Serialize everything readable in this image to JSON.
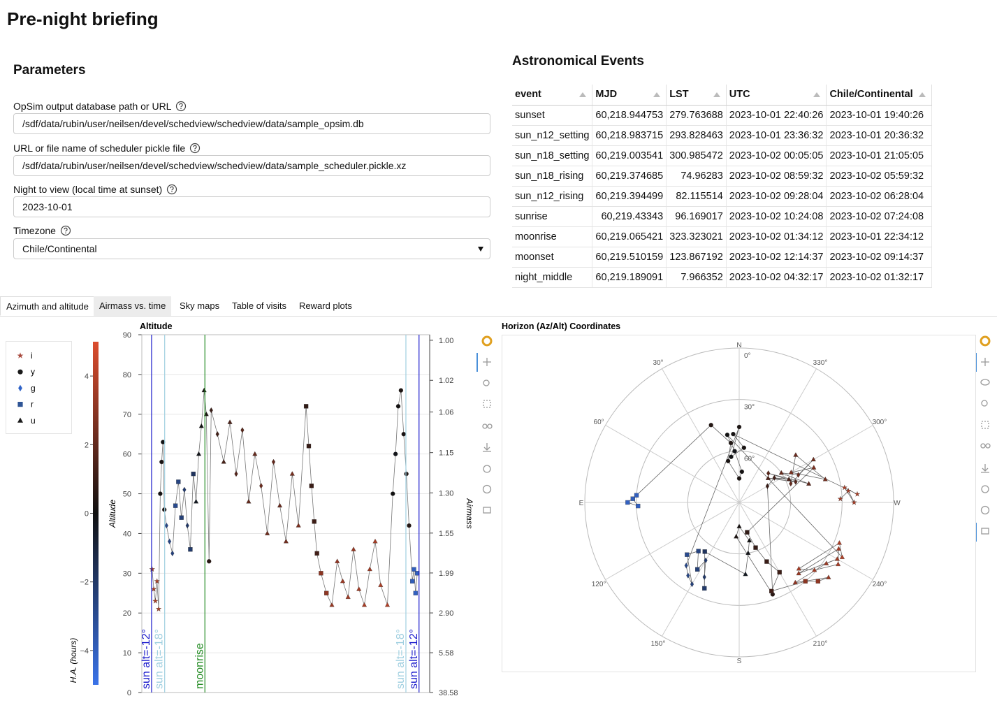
{
  "header": {
    "title": "Pre-night briefing"
  },
  "parameters": {
    "title": "Parameters",
    "fields": [
      {
        "label": "OpSim output database path or URL",
        "value": "/sdf/data/rubin/user/neilsen/devel/schedview/schedview/data/sample_opsim.db"
      },
      {
        "label": "URL or file name of scheduler pickle file",
        "value": "/sdf/data/rubin/user/neilsen/devel/schedview/schedview/data/sample_scheduler.pickle.xz"
      },
      {
        "label": "Night to view (local time at sunset)",
        "value": "2023-10-01"
      },
      {
        "label": "Timezone",
        "value": "Chile/Continental"
      }
    ]
  },
  "events": {
    "title": "Astronomical Events",
    "columns": [
      "event",
      "MJD",
      "LST",
      "UTC",
      "Chile/Continental"
    ],
    "rows": [
      [
        "sunset",
        "60,218.944753",
        "279.763688",
        "2023-10-01 22:40:26",
        "2023-10-01 19:40:26"
      ],
      [
        "sun_n12_setting",
        "60,218.983715",
        "293.828463",
        "2023-10-01 23:36:32",
        "2023-10-01 20:36:32"
      ],
      [
        "sun_n18_setting",
        "60,219.003541",
        "300.985472",
        "2023-10-02 00:05:05",
        "2023-10-01 21:05:05"
      ],
      [
        "sun_n18_rising",
        "60,219.374685",
        "74.96283",
        "2023-10-02 08:59:32",
        "2023-10-02 05:59:32"
      ],
      [
        "sun_n12_rising",
        "60,219.394499",
        "82.115514",
        "2023-10-02 09:28:04",
        "2023-10-02 06:28:04"
      ],
      [
        "sunrise",
        "60,219.43343",
        "96.169017",
        "2023-10-02 10:24:08",
        "2023-10-02 07:24:08"
      ],
      [
        "moonrise",
        "60,219.065421",
        "323.323021",
        "2023-10-02 01:34:12",
        "2023-10-01 22:34:12"
      ],
      [
        "moonset",
        "60,219.510159",
        "123.867192",
        "2023-10-02 12:14:37",
        "2023-10-02 09:14:37"
      ],
      [
        "night_middle",
        "60,219.189091",
        "7.966352",
        "2023-10-02 04:32:17",
        "2023-10-02 01:32:17"
      ]
    ]
  },
  "tabs": [
    "Azimuth and altitude",
    "Airmass vs. time",
    "Sky maps",
    "Table of visits",
    "Reward plots"
  ],
  "chart_data": [
    {
      "type": "scatter",
      "title": "Altitude",
      "ylabel": "Altitude",
      "y2label": "Airmass",
      "y2scale": "airmass",
      "xlim": [
        20.24,
        30.86
      ],
      "ylim": [
        0,
        90
      ],
      "yticks": [
        0,
        10,
        20,
        30,
        40,
        50,
        60,
        70,
        80,
        90
      ],
      "grid": true,
      "y2ticks": [
        {
          "value": 1,
          "label": "1.00"
        },
        1.02,
        1.06,
        1.15,
        {
          "value": 1.3,
          "label": "1.30"
        },
        1.55,
        1.99,
        {
          "value": 2.9,
          "label": "2.90"
        },
        5.58,
        38.58
      ],
      "x": [
        20.62,
        20.68,
        20.74,
        20.8,
        20.86,
        20.92,
        20.97,
        21.02,
        21.07,
        21.15,
        21.26,
        21.37,
        21.48,
        21.59,
        21.7,
        21.81,
        21.92,
        22.03,
        22.14,
        22.24,
        22.34,
        22.44,
        22.54,
        22.62,
        22.72,
        22.8,
        23.03,
        23.26,
        23.49,
        23.72,
        23.95,
        24.18,
        24.41,
        24.64,
        24.87,
        25.1,
        25.33,
        25.56,
        25.79,
        26.02,
        26.3,
        26.4,
        26.5,
        26.6,
        26.7,
        26.85,
        27.05,
        27.25,
        27.45,
        27.65,
        27.85,
        28.05,
        28.25,
        28.45,
        28.65,
        28.85,
        29.05,
        29.3,
        29.5,
        29.6,
        29.7,
        29.8,
        29.9,
        30.0,
        30.1,
        30.22,
        30.28,
        30.34,
        30.4
      ],
      "alt": [
        31,
        26,
        23,
        28,
        21,
        50,
        58,
        63,
        46,
        42,
        38,
        35,
        47,
        53,
        44,
        51,
        42,
        36,
        55,
        48,
        60,
        67,
        76,
        70,
        33,
        71,
        65,
        58,
        68,
        55,
        66,
        48,
        60,
        52,
        40,
        58,
        47,
        38,
        55,
        42,
        72,
        62,
        52,
        43,
        35,
        30,
        25,
        22,
        33,
        28,
        24,
        36,
        26,
        22,
        31,
        38,
        27,
        22,
        50,
        60,
        72,
        76,
        65,
        55,
        42,
        28,
        31,
        25,
        30
      ],
      "ha": [
        3.6,
        3.7,
        3.7,
        3.8,
        3.8,
        0.1,
        0.2,
        -0.1,
        0.3,
        -2.8,
        -2.7,
        -2.5,
        -2.9,
        -2.6,
        -2.4,
        -2.2,
        -2,
        -2.1,
        -1.8,
        -0.4,
        -0.2,
        0,
        0.2,
        0.3,
        0.6,
        1,
        1.2,
        1.4,
        1.5,
        1.7,
        1.8,
        2,
        2.1,
        2.2,
        2.3,
        2,
        2.2,
        2.4,
        2.5,
        2.6,
        0.8,
        0.9,
        1,
        1.1,
        1.2,
        3,
        3.1,
        3.3,
        3.2,
        3.4,
        3.5,
        3.3,
        3.6,
        3.7,
        3.5,
        3.6,
        3.8,
        3.9,
        0,
        -0.2,
        0.1,
        0.3,
        0.2,
        0.4,
        0.5,
        -3.9,
        -4,
        -4.1,
        -4
      ],
      "filter": [
        "i",
        "i",
        "i",
        "i",
        "i",
        "y",
        "y",
        "y",
        "y",
        "g",
        "g",
        "g",
        "r",
        "r",
        "r",
        "g",
        "g",
        "r",
        "r",
        "u",
        "u",
        "u",
        "u",
        "u",
        "y",
        "g",
        "g",
        "u",
        "u",
        "g",
        "g",
        "u",
        "u",
        "g",
        "u",
        "g",
        "u",
        "u",
        "u",
        "u",
        "r",
        "r",
        "r",
        "r",
        "r",
        "r",
        "r",
        "u",
        "u",
        "u",
        "u",
        "u",
        "u",
        "u",
        "u",
        "u",
        "u",
        "u",
        "y",
        "y",
        "y",
        "y",
        "y",
        "y",
        "y",
        "r",
        "r",
        "r",
        "r"
      ],
      "filters": [
        {
          "name": "i",
          "marker": "star",
          "color": "#a84a3e"
        },
        {
          "name": "y",
          "marker": "circle",
          "color": "#1a1a1a"
        },
        {
          "name": "g",
          "marker": "diamond",
          "color": "#2f63c8"
        },
        {
          "name": "r",
          "marker": "square",
          "color": "#2f5596"
        },
        {
          "name": "u",
          "marker": "triangle",
          "color": "#1a1a1a"
        }
      ],
      "colorbar": {
        "label": "H.A. (hours)",
        "clim": [
          -5,
          5
        ],
        "colors": [
          "#3a73e8",
          "#111111",
          "#dc4d2e"
        ],
        "ticks": [
          {
            "value": -4,
            "label": "−4"
          },
          {
            "value": -2,
            "label": "−2"
          },
          0,
          2,
          4
        ]
      },
      "vlines": [
        {
          "x": 20.6,
          "label": "sun alt=-12°",
          "color": "#1a1acc"
        },
        {
          "x": 21.083,
          "label": "sun alt=-18°",
          "color": "#9fcfe0"
        },
        {
          "x": 22.567,
          "label": "moonrise",
          "color": "#228b22"
        },
        {
          "x": 29.983,
          "label": "sun alt=-18°",
          "color": "#9fcfe0"
        },
        {
          "x": 30.467,
          "label": "sun alt=-12°",
          "color": "#1a1acc"
        }
      ]
    },
    {
      "type": "polar",
      "title": "Horizon (Az/Alt) Coordinates",
      "rlim": [
        90,
        0
      ],
      "rticks": [
        {
          "value": 0,
          "label": "0°"
        },
        {
          "value": 30,
          "label": "30°"
        },
        {
          "value": 60,
          "label": "60°"
        }
      ],
      "azticks": [
        {
          "value": 30,
          "label": "30°"
        },
        {
          "value": 60,
          "label": "60°"
        },
        {
          "value": 120,
          "label": "120°"
        },
        {
          "value": 150,
          "label": "150°"
        },
        {
          "value": 210,
          "label": "210°"
        },
        {
          "value": 240,
          "label": "240°"
        },
        {
          "value": 300,
          "label": "300°"
        },
        {
          "value": 330,
          "label": "330°"
        }
      ],
      "cardinals": [
        {
          "value": 0,
          "label": "N"
        },
        {
          "value": 90,
          "label": "E"
        },
        {
          "value": 180,
          "label": "S"
        },
        {
          "value": 270,
          "label": "W"
        }
      ],
      "az": [
        272,
        276,
        270,
        278,
        274,
        5,
        355,
        10,
        0,
        140,
        145,
        150,
        135,
        140,
        148,
        150,
        155,
        158,
        145,
        185,
        190,
        195,
        180,
        175,
        200,
        300,
        305,
        295,
        310,
        290,
        315,
        285,
        305,
        295,
        300,
        290,
        310,
        285,
        300,
        295,
        195,
        200,
        205,
        210,
        200,
        220,
        225,
        230,
        215,
        235,
        240,
        220,
        245,
        238,
        228,
        222,
        248,
        242,
        10,
        5,
        355,
        0,
        15,
        8,
        20,
        88,
        92,
        90,
        86
      ],
      "alt": [
        31,
        26,
        23,
        28,
        21,
        50,
        58,
        63,
        46,
        42,
        38,
        35,
        47,
        53,
        44,
        51,
        42,
        36,
        55,
        48,
        60,
        67,
        76,
        70,
        33,
        71,
        65,
        58,
        68,
        55,
        66,
        48,
        60,
        52,
        40,
        58,
        47,
        38,
        55,
        42,
        72,
        62,
        52,
        43,
        35,
        30,
        25,
        22,
        33,
        28,
        24,
        36,
        26,
        22,
        31,
        38,
        27,
        22,
        50,
        60,
        72,
        76,
        65,
        55,
        42,
        28,
        31,
        25,
        30
      ],
      "ha": [
        3.6,
        3.7,
        3.7,
        3.8,
        3.8,
        0.1,
        0.2,
        -0.1,
        0.3,
        -2.8,
        -2.7,
        -2.5,
        -2.9,
        -2.6,
        -2.4,
        -2.2,
        -2,
        -2.1,
        -1.8,
        -0.4,
        -0.2,
        0,
        0.2,
        0.3,
        0.6,
        1,
        1.2,
        1.4,
        1.5,
        1.7,
        1.8,
        2,
        2.1,
        2.2,
        2.3,
        2,
        2.2,
        2.4,
        2.5,
        2.6,
        0.8,
        0.9,
        1,
        1.1,
        1.2,
        3,
        3.1,
        3.3,
        3.2,
        3.4,
        3.5,
        3.3,
        3.6,
        3.7,
        3.5,
        3.6,
        3.8,
        3.9,
        0,
        -0.2,
        0.1,
        0.3,
        0.2,
        0.4,
        0.5,
        -3.9,
        -4,
        -4.1,
        -4
      ],
      "filter": [
        "i",
        "i",
        "i",
        "i",
        "i",
        "y",
        "y",
        "y",
        "y",
        "g",
        "g",
        "g",
        "r",
        "r",
        "r",
        "g",
        "g",
        "r",
        "r",
        "u",
        "u",
        "u",
        "u",
        "u",
        "y",
        "g",
        "g",
        "u",
        "u",
        "g",
        "g",
        "u",
        "u",
        "g",
        "u",
        "g",
        "u",
        "u",
        "u",
        "u",
        "r",
        "r",
        "r",
        "r",
        "r",
        "r",
        "r",
        "u",
        "u",
        "u",
        "u",
        "u",
        "u",
        "u",
        "u",
        "u",
        "u",
        "u",
        "y",
        "y",
        "y",
        "y",
        "y",
        "y",
        "y",
        "r",
        "r",
        "r",
        "r"
      ],
      "clim": [
        -5,
        5
      ],
      "colors": [
        "#3a73e8",
        "#111111",
        "#dc4d2e"
      ]
    }
  ]
}
